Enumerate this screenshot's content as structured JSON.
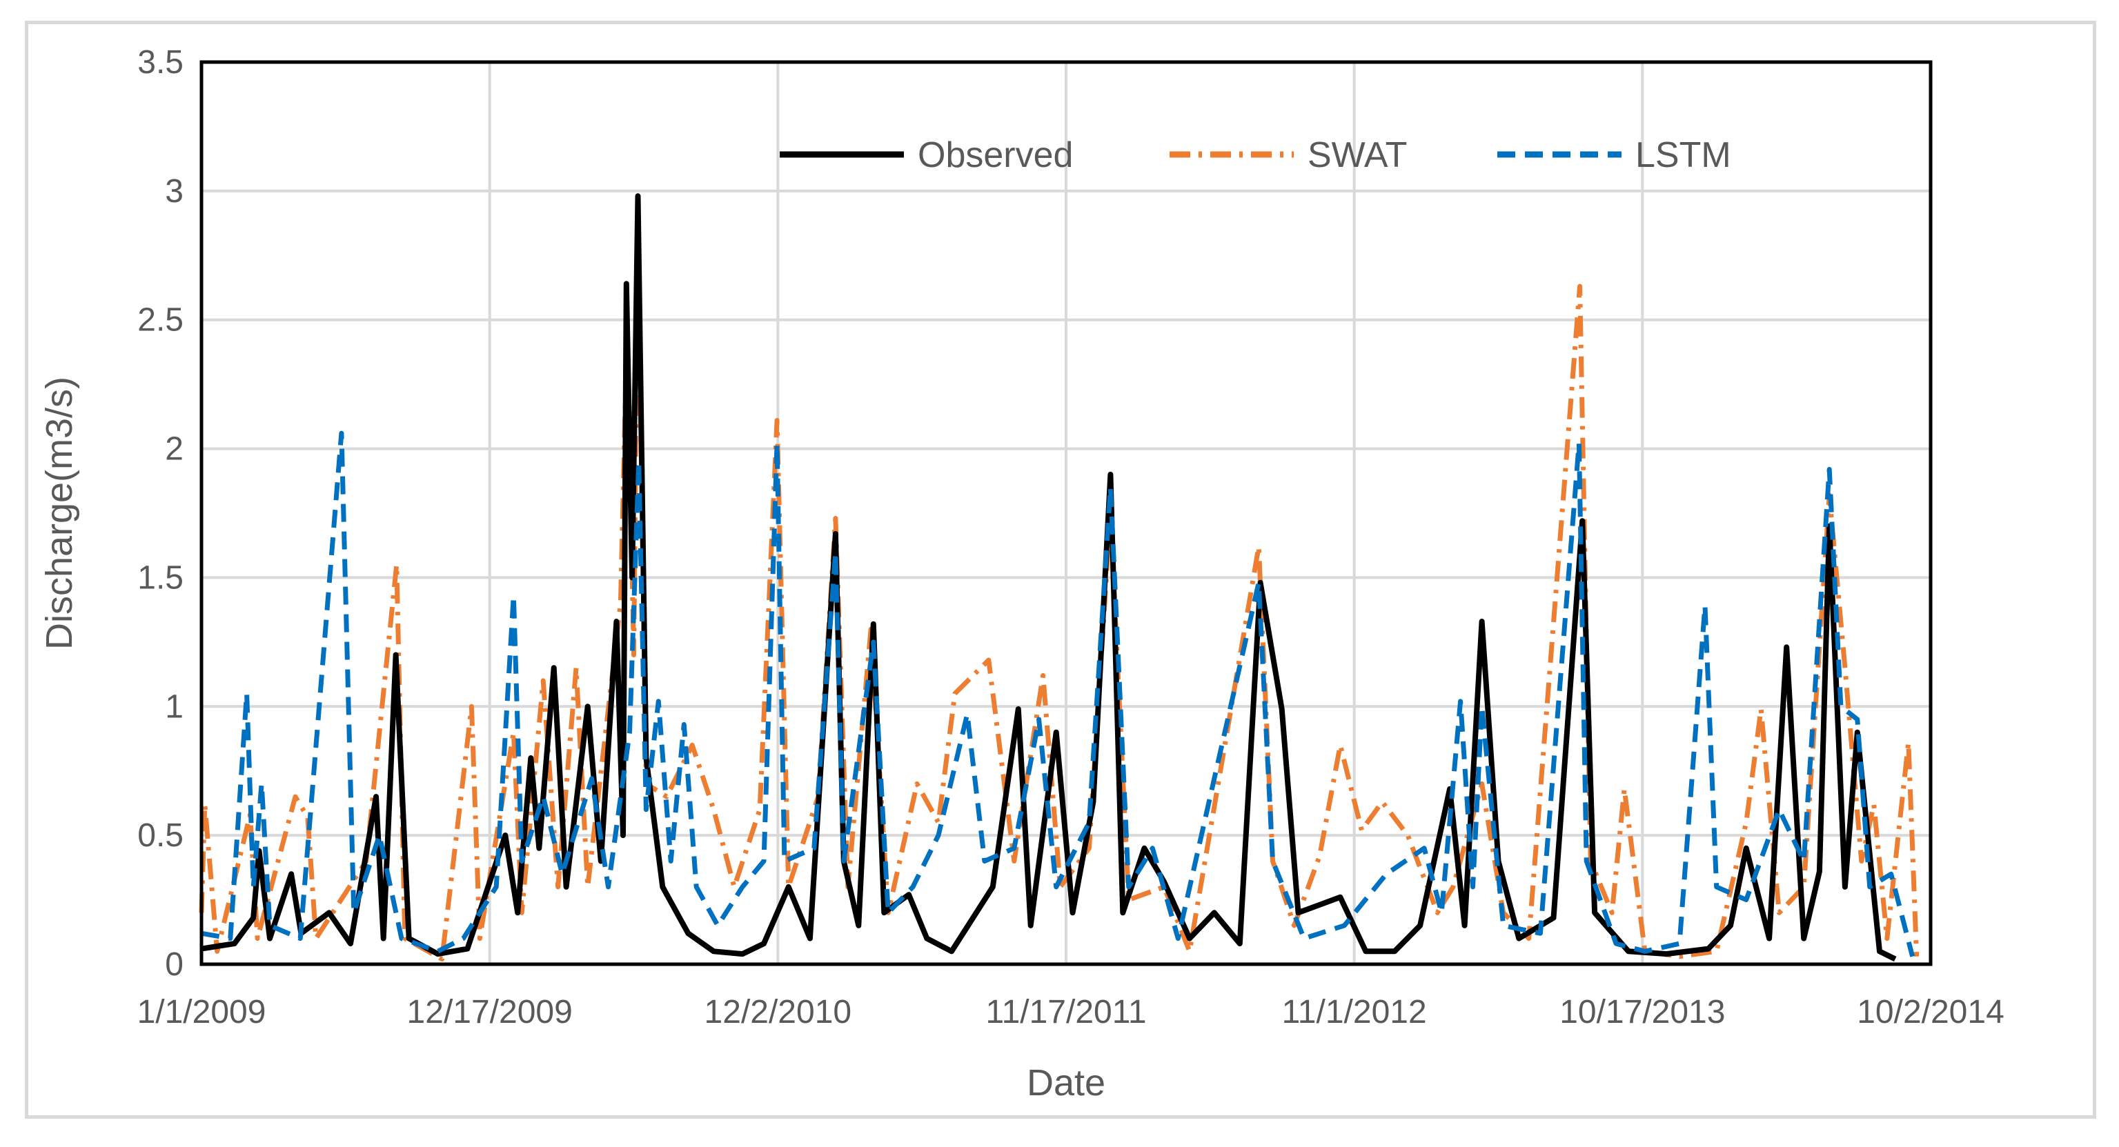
{
  "chart_data": {
    "type": "line",
    "title": "",
    "xlabel": "Date",
    "ylabel": "Discharge(m3/s)",
    "ylim": [
      0,
      3.5
    ],
    "xlim": [
      "2009-01-01",
      "2014-10-02"
    ],
    "y_ticks": [
      "0",
      "0.5",
      "1",
      "1.5",
      "2",
      "2.5",
      "3",
      "3.5"
    ],
    "x_ticks": [
      "1/1/2009",
      "12/17/2009",
      "12/2/2010",
      "11/17/2011",
      "11/1/2012",
      "10/17/2013",
      "10/2/2014"
    ],
    "grid": true,
    "legend_position": "top-center",
    "series": [
      {
        "name": "Observed",
        "color": "#000000",
        "style": "solid",
        "points": [
          [
            "2009-01-01",
            0.06
          ],
          [
            "2009-02-10",
            0.08
          ],
          [
            "2009-03-05",
            0.18
          ],
          [
            "2009-03-12",
            0.44
          ],
          [
            "2009-03-25",
            0.1
          ],
          [
            "2009-04-20",
            0.35
          ],
          [
            "2009-05-02",
            0.12
          ],
          [
            "2009-06-05",
            0.2
          ],
          [
            "2009-07-01",
            0.08
          ],
          [
            "2009-08-01",
            0.65
          ],
          [
            "2009-08-10",
            0.1
          ],
          [
            "2009-08-25",
            1.2
          ],
          [
            "2009-09-10",
            0.1
          ],
          [
            "2009-10-15",
            0.04
          ],
          [
            "2009-11-20",
            0.06
          ],
          [
            "2010-01-05",
            0.5
          ],
          [
            "2010-01-20",
            0.2
          ],
          [
            "2010-02-05",
            0.8
          ],
          [
            "2010-02-15",
            0.45
          ],
          [
            "2010-03-05",
            1.15
          ],
          [
            "2010-03-20",
            0.3
          ],
          [
            "2010-04-15",
            1.0
          ],
          [
            "2010-05-01",
            0.4
          ],
          [
            "2010-05-20",
            1.33
          ],
          [
            "2010-05-28",
            0.5
          ],
          [
            "2010-06-01",
            2.64
          ],
          [
            "2010-06-08",
            1.5
          ],
          [
            "2010-06-15",
            2.98
          ],
          [
            "2010-06-25",
            0.8
          ],
          [
            "2010-07-15",
            0.3
          ],
          [
            "2010-08-15",
            0.12
          ],
          [
            "2010-09-15",
            0.05
          ],
          [
            "2010-10-20",
            0.04
          ],
          [
            "2010-11-15",
            0.08
          ],
          [
            "2010-12-15",
            0.3
          ],
          [
            "2011-01-10",
            0.1
          ],
          [
            "2011-02-10",
            1.67
          ],
          [
            "2011-02-20",
            0.4
          ],
          [
            "2011-03-10",
            0.15
          ],
          [
            "2011-03-28",
            1.32
          ],
          [
            "2011-04-10",
            0.2
          ],
          [
            "2011-05-10",
            0.27
          ],
          [
            "2011-06-01",
            0.1
          ],
          [
            "2011-07-01",
            0.05
          ],
          [
            "2011-08-20",
            0.3
          ],
          [
            "2011-09-20",
            0.99
          ],
          [
            "2011-10-05",
            0.15
          ],
          [
            "2011-11-05",
            0.9
          ],
          [
            "2011-11-25",
            0.2
          ],
          [
            "2011-12-20",
            0.63
          ],
          [
            "2012-01-10",
            1.9
          ],
          [
            "2012-01-25",
            0.2
          ],
          [
            "2012-02-20",
            0.45
          ],
          [
            "2012-03-15",
            0.32
          ],
          [
            "2012-04-15",
            0.1
          ],
          [
            "2012-05-15",
            0.2
          ],
          [
            "2012-06-15",
            0.08
          ],
          [
            "2012-07-10",
            1.48
          ],
          [
            "2012-08-05",
            0.99
          ],
          [
            "2012-08-25",
            0.2
          ],
          [
            "2012-10-15",
            0.26
          ],
          [
            "2012-11-15",
            0.05
          ],
          [
            "2012-12-20",
            0.05
          ],
          [
            "2013-01-20",
            0.15
          ],
          [
            "2013-02-25",
            0.68
          ],
          [
            "2013-03-15",
            0.15
          ],
          [
            "2013-04-05",
            1.33
          ],
          [
            "2013-04-25",
            0.4
          ],
          [
            "2013-05-20",
            0.1
          ],
          [
            "2013-07-01",
            0.18
          ],
          [
            "2013-08-05",
            1.72
          ],
          [
            "2013-08-20",
            0.2
          ],
          [
            "2013-09-30",
            0.05
          ],
          [
            "2013-11-15",
            0.04
          ],
          [
            "2014-01-05",
            0.06
          ],
          [
            "2014-02-01",
            0.15
          ],
          [
            "2014-02-20",
            0.45
          ],
          [
            "2014-03-20",
            0.1
          ],
          [
            "2014-04-10",
            1.23
          ],
          [
            "2014-05-01",
            0.1
          ],
          [
            "2014-05-20",
            0.36
          ],
          [
            "2014-06-01",
            1.7
          ],
          [
            "2014-06-20",
            0.3
          ],
          [
            "2014-07-05",
            0.9
          ],
          [
            "2014-08-01",
            0.05
          ],
          [
            "2014-08-20",
            0.02
          ]
        ]
      },
      {
        "name": "SWAT",
        "color": "#ed7d31",
        "style": "dash-dot",
        "points": [
          [
            "2009-01-01",
            0.2
          ],
          [
            "2009-01-05",
            0.62
          ],
          [
            "2009-01-20",
            0.05
          ],
          [
            "2009-03-01",
            0.58
          ],
          [
            "2009-03-10",
            0.1
          ],
          [
            "2009-04-25",
            0.65
          ],
          [
            "2009-05-10",
            0.57
          ],
          [
            "2009-05-20",
            0.1
          ],
          [
            "2009-07-20",
            0.4
          ],
          [
            "2009-08-26",
            1.55
          ],
          [
            "2009-09-05",
            0.1
          ],
          [
            "2009-10-20",
            0.02
          ],
          [
            "2009-11-25",
            1.0
          ],
          [
            "2009-12-05",
            0.1
          ],
          [
            "2010-01-15",
            0.9
          ],
          [
            "2010-01-25",
            0.2
          ],
          [
            "2010-02-20",
            1.1
          ],
          [
            "2010-03-10",
            0.3
          ],
          [
            "2010-04-01",
            1.15
          ],
          [
            "2010-04-15",
            0.3
          ],
          [
            "2010-05-25",
            1.4
          ],
          [
            "2010-06-02",
            2.5
          ],
          [
            "2010-06-10",
            1.2
          ],
          [
            "2010-06-15",
            2.85
          ],
          [
            "2010-06-25",
            0.7
          ],
          [
            "2010-07-20",
            0.65
          ],
          [
            "2010-08-20",
            0.85
          ],
          [
            "2010-09-15",
            0.6
          ],
          [
            "2010-10-10",
            0.3
          ],
          [
            "2010-11-10",
            0.6
          ],
          [
            "2010-12-01",
            2.11
          ],
          [
            "2010-12-15",
            0.3
          ],
          [
            "2011-01-20",
            0.65
          ],
          [
            "2011-02-10",
            1.73
          ],
          [
            "2011-02-25",
            0.3
          ],
          [
            "2011-03-25",
            1.3
          ],
          [
            "2011-04-15",
            0.2
          ],
          [
            "2011-05-20",
            0.7
          ],
          [
            "2011-06-15",
            0.55
          ],
          [
            "2011-07-05",
            1.05
          ],
          [
            "2011-08-15",
            1.18
          ],
          [
            "2011-09-15",
            0.4
          ],
          [
            "2011-10-20",
            1.12
          ],
          [
            "2011-11-10",
            0.3
          ],
          [
            "2011-12-15",
            0.45
          ],
          [
            "2012-01-10",
            1.75
          ],
          [
            "2012-02-01",
            0.25
          ],
          [
            "2012-03-15",
            0.3
          ],
          [
            "2012-04-15",
            0.05
          ],
          [
            "2012-07-08",
            1.62
          ],
          [
            "2012-07-25",
            0.4
          ],
          [
            "2012-08-20",
            0.15
          ],
          [
            "2012-09-20",
            0.42
          ],
          [
            "2012-10-15",
            0.85
          ],
          [
            "2012-11-10",
            0.52
          ],
          [
            "2012-12-05",
            0.63
          ],
          [
            "2013-01-05",
            0.5
          ],
          [
            "2013-02-10",
            0.2
          ],
          [
            "2013-03-01",
            0.3
          ],
          [
            "2013-04-05",
            0.7
          ],
          [
            "2013-05-01",
            0.2
          ],
          [
            "2013-06-01",
            0.1
          ],
          [
            "2013-08-02",
            2.63
          ],
          [
            "2013-08-15",
            0.4
          ],
          [
            "2013-09-10",
            0.2
          ],
          [
            "2013-09-25",
            0.68
          ],
          [
            "2013-10-20",
            0.05
          ],
          [
            "2013-12-01",
            0.03
          ],
          [
            "2014-01-15",
            0.05
          ],
          [
            "2014-02-20",
            0.55
          ],
          [
            "2014-03-10",
            0.99
          ],
          [
            "2014-04-01",
            0.2
          ],
          [
            "2014-05-01",
            0.3
          ],
          [
            "2014-06-01",
            1.82
          ],
          [
            "2014-06-20",
            1.15
          ],
          [
            "2014-07-10",
            0.4
          ],
          [
            "2014-07-25",
            0.62
          ],
          [
            "2014-08-10",
            0.1
          ],
          [
            "2014-09-05",
            0.86
          ],
          [
            "2014-09-15",
            0.03
          ]
        ]
      },
      {
        "name": "LSTM",
        "color": "#0070c0",
        "style": "dashed",
        "points": [
          [
            "2009-01-01",
            0.12
          ],
          [
            "2009-02-05",
            0.1
          ],
          [
            "2009-02-25",
            1.05
          ],
          [
            "2009-03-05",
            0.3
          ],
          [
            "2009-03-15",
            0.7
          ],
          [
            "2009-03-25",
            0.15
          ],
          [
            "2009-05-01",
            0.1
          ],
          [
            "2009-06-20",
            2.06
          ],
          [
            "2009-07-05",
            0.2
          ],
          [
            "2009-08-05",
            0.5
          ],
          [
            "2009-09-01",
            0.1
          ],
          [
            "2009-10-15",
            0.05
          ],
          [
            "2009-11-15",
            0.1
          ],
          [
            "2009-12-25",
            0.3
          ],
          [
            "2010-01-15",
            1.43
          ],
          [
            "2010-01-25",
            0.4
          ],
          [
            "2010-02-20",
            0.65
          ],
          [
            "2010-03-15",
            0.35
          ],
          [
            "2010-04-20",
            0.72
          ],
          [
            "2010-05-10",
            0.3
          ],
          [
            "2010-06-05",
            0.9
          ],
          [
            "2010-06-16",
            1.95
          ],
          [
            "2010-06-25",
            0.6
          ],
          [
            "2010-07-10",
            1.02
          ],
          [
            "2010-07-25",
            0.4
          ],
          [
            "2010-08-10",
            0.93
          ],
          [
            "2010-08-25",
            0.3
          ],
          [
            "2010-09-20",
            0.15
          ],
          [
            "2010-10-20",
            0.3
          ],
          [
            "2010-11-15",
            0.4
          ],
          [
            "2010-12-01",
            2.02
          ],
          [
            "2010-12-10",
            0.4
          ],
          [
            "2011-01-15",
            0.45
          ],
          [
            "2011-02-10",
            1.6
          ],
          [
            "2011-02-20",
            0.4
          ],
          [
            "2011-03-28",
            1.25
          ],
          [
            "2011-04-15",
            0.2
          ],
          [
            "2011-05-15",
            0.3
          ],
          [
            "2011-06-15",
            0.5
          ],
          [
            "2011-07-20",
            0.97
          ],
          [
            "2011-08-10",
            0.4
          ],
          [
            "2011-09-15",
            0.45
          ],
          [
            "2011-10-15",
            0.95
          ],
          [
            "2011-11-05",
            0.3
          ],
          [
            "2011-12-15",
            0.55
          ],
          [
            "2012-01-10",
            1.85
          ],
          [
            "2012-02-01",
            0.3
          ],
          [
            "2012-03-01",
            0.45
          ],
          [
            "2012-04-01",
            0.1
          ],
          [
            "2012-07-08",
            1.48
          ],
          [
            "2012-07-25",
            0.4
          ],
          [
            "2012-09-01",
            0.1
          ],
          [
            "2012-10-20",
            0.15
          ],
          [
            "2012-12-10",
            0.35
          ],
          [
            "2013-01-25",
            0.45
          ],
          [
            "2013-02-15",
            0.2
          ],
          [
            "2013-03-10",
            1.02
          ],
          [
            "2013-03-25",
            0.3
          ],
          [
            "2013-04-05",
            1.0
          ],
          [
            "2013-05-01",
            0.15
          ],
          [
            "2013-06-15",
            0.12
          ],
          [
            "2013-08-01",
            2.02
          ],
          [
            "2013-08-10",
            0.4
          ],
          [
            "2013-09-15",
            0.08
          ],
          [
            "2013-10-20",
            0.05
          ],
          [
            "2013-12-01",
            0.08
          ],
          [
            "2014-01-01",
            1.39
          ],
          [
            "2014-01-15",
            0.3
          ],
          [
            "2014-02-20",
            0.25
          ],
          [
            "2014-04-01",
            0.6
          ],
          [
            "2014-05-01",
            0.4
          ],
          [
            "2014-06-01",
            1.92
          ],
          [
            "2014-06-15",
            1.0
          ],
          [
            "2014-07-05",
            0.95
          ],
          [
            "2014-07-20",
            0.3
          ],
          [
            "2014-08-15",
            0.35
          ],
          [
            "2014-09-10",
            0.03
          ]
        ]
      }
    ]
  }
}
